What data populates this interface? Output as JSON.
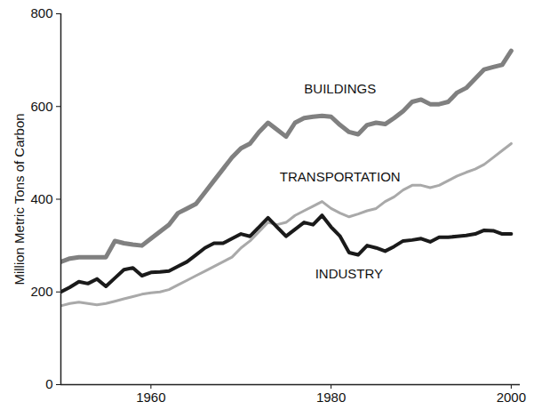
{
  "chart_data": {
    "type": "line",
    "y_label": "Million Metric Tons of Carbon",
    "x": [
      1950,
      1951,
      1952,
      1953,
      1954,
      1955,
      1956,
      1957,
      1958,
      1959,
      1960,
      1961,
      1962,
      1963,
      1964,
      1965,
      1966,
      1967,
      1968,
      1969,
      1970,
      1971,
      1972,
      1973,
      1974,
      1975,
      1976,
      1977,
      1978,
      1979,
      1980,
      1981,
      1982,
      1983,
      1984,
      1985,
      1986,
      1987,
      1988,
      1989,
      1990,
      1991,
      1992,
      1993,
      1994,
      1995,
      1996,
      1997,
      1998,
      1999,
      2000
    ],
    "series": [
      {
        "name": "BUILDINGS",
        "color": "#808080",
        "values": [
          265,
          272,
          275,
          275,
          275,
          275,
          310,
          305,
          302,
          300,
          315,
          330,
          345,
          370,
          380,
          390,
          415,
          440,
          465,
          490,
          510,
          520,
          545,
          565,
          550,
          535,
          565,
          575,
          578,
          580,
          578,
          560,
          545,
          540,
          560,
          565,
          562,
          575,
          590,
          610,
          615,
          605,
          605,
          610,
          630,
          640,
          660,
          680,
          685,
          690,
          720
        ]
      },
      {
        "name": "TRANSPORTATION",
        "color": "#a9a9a9",
        "values": [
          170,
          175,
          178,
          175,
          172,
          175,
          180,
          185,
          190,
          195,
          198,
          200,
          205,
          215,
          225,
          235,
          245,
          255,
          265,
          275,
          295,
          310,
          330,
          350,
          345,
          350,
          365,
          375,
          385,
          395,
          380,
          370,
          362,
          368,
          375,
          380,
          395,
          405,
          420,
          430,
          430,
          425,
          430,
          440,
          450,
          458,
          465,
          475,
          490,
          505,
          520
        ]
      },
      {
        "name": "INDUSTRY",
        "color": "#1a1a1a",
        "values": [
          200,
          210,
          222,
          218,
          228,
          212,
          230,
          248,
          252,
          235,
          242,
          243,
          245,
          255,
          265,
          280,
          295,
          305,
          305,
          315,
          325,
          320,
          340,
          360,
          340,
          320,
          335,
          350,
          345,
          365,
          340,
          320,
          285,
          280,
          300,
          295,
          288,
          298,
          310,
          312,
          315,
          308,
          318,
          318,
          320,
          322,
          325,
          333,
          332,
          325,
          325
        ]
      }
    ],
    "xlim": [
      1950,
      2001
    ],
    "xticks": [
      1960,
      1980,
      2000
    ],
    "ylim": [
      0,
      800
    ],
    "yticks": [
      0,
      200,
      400,
      600,
      800
    ],
    "grid": false
  }
}
